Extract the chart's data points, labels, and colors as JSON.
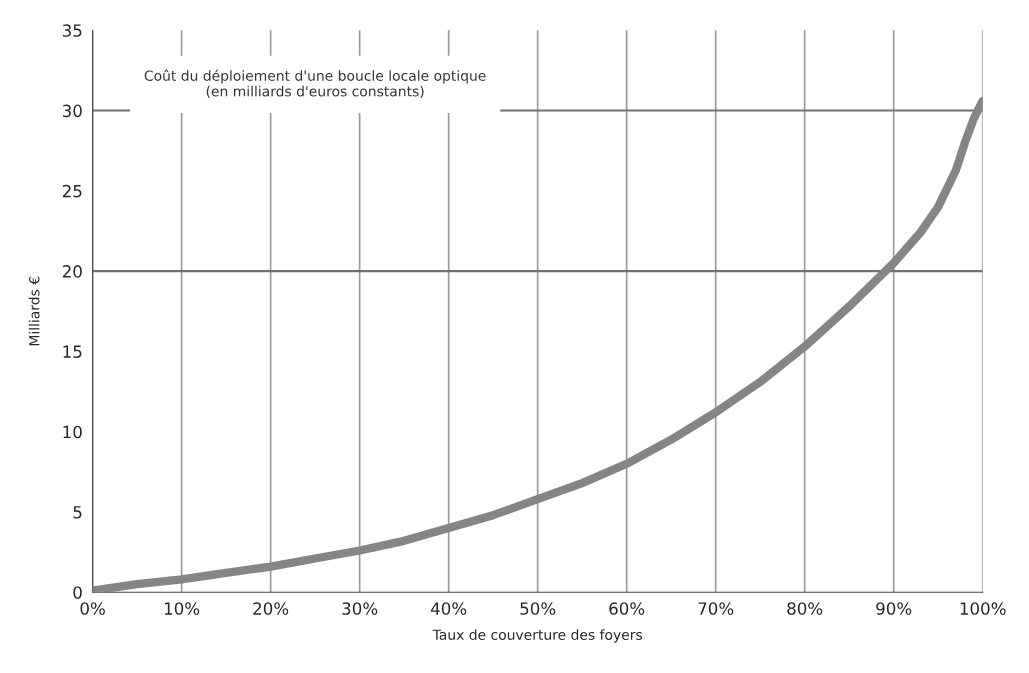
{
  "chart_data": {
    "type": "line",
    "title": "Coût du déploiement d'une boucle locale optique\n(en milliards d'euros constants)",
    "xlabel": "Taux de couverture des foyers",
    "ylabel": "Milliards €",
    "x": [
      0,
      5,
      10,
      15,
      20,
      25,
      30,
      35,
      40,
      45,
      50,
      55,
      60,
      65,
      70,
      75,
      80,
      85,
      90,
      93,
      95,
      97,
      98,
      99,
      100
    ],
    "series": [
      {
        "color": "#858585",
        "values": [
          0.1,
          0.5,
          0.8,
          1.2,
          1.6,
          2.1,
          2.6,
          3.2,
          4.0,
          4.8,
          5.8,
          6.8,
          8.0,
          9.5,
          11.2,
          13.1,
          15.3,
          17.8,
          20.5,
          22.4,
          24.0,
          26.3,
          28.0,
          29.5,
          30.6
        ]
      }
    ],
    "xlim": [
      0,
      100
    ],
    "ylim": [
      0,
      35
    ],
    "xticks": [
      {
        "value": 0,
        "label": "0%"
      },
      {
        "value": 10,
        "label": "10%"
      },
      {
        "value": 20,
        "label": "20%"
      },
      {
        "value": 30,
        "label": "30%"
      },
      {
        "value": 40,
        "label": "40%"
      },
      {
        "value": 50,
        "label": "50%"
      },
      {
        "value": 60,
        "label": "60%"
      },
      {
        "value": 70,
        "label": "70%"
      },
      {
        "value": 80,
        "label": "80%"
      },
      {
        "value": 90,
        "label": "90%"
      },
      {
        "value": 100,
        "label": "100%"
      }
    ],
    "yticks": [
      0,
      5,
      10,
      15,
      20,
      25,
      30,
      35
    ],
    "grid": "x",
    "ref_lines": [
      {
        "axis": "y",
        "value": 20,
        "color": "#707070"
      },
      {
        "axis": "y",
        "value": 30,
        "color": "#707070"
      }
    ],
    "marker": "none",
    "line_style": "solid"
  }
}
